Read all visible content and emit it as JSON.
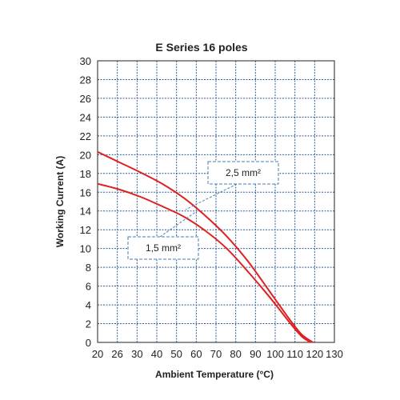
{
  "chart_data": {
    "type": "line",
    "title": "E Series 16 poles",
    "xlabel": "Ambient Temperature (°C)",
    "ylabel": "Working Current (A)",
    "xlim": [
      20,
      130
    ],
    "ylim": [
      0,
      30
    ],
    "x_ticks": [
      "20",
      "26",
      "30",
      "40",
      "50",
      "60",
      "70",
      "80",
      "90",
      "100",
      "110",
      "120",
      "130"
    ],
    "y_ticks": [
      "0",
      "2",
      "4",
      "6",
      "8",
      "10",
      "12",
      "14",
      "16",
      "18",
      "20",
      "22",
      "24",
      "26",
      "28",
      "30"
    ],
    "grid": true,
    "series": [
      {
        "name": "2,5 mm²",
        "color": "#e02020",
        "x": [
          20,
          30,
          40,
          50,
          60,
          70,
          80,
          90,
          100,
          110,
          115,
          120
        ],
        "y": [
          20.3,
          19.2,
          18.1,
          16.9,
          15.4,
          13.5,
          11.3,
          8.6,
          5.4,
          2.2,
          0.8,
          0
        ]
      },
      {
        "name": "1,5 mm²",
        "color": "#e02020",
        "x": [
          20,
          30,
          40,
          50,
          60,
          70,
          80,
          90,
          100,
          110,
          115,
          119
        ],
        "y": [
          16.9,
          16.3,
          15.5,
          14.5,
          13.4,
          11.9,
          10.0,
          7.5,
          4.8,
          1.9,
          0.6,
          0
        ]
      }
    ],
    "annotations": [
      {
        "text": "2,5 mm²"
      },
      {
        "text": "1,5 mm²"
      }
    ],
    "series_color": "#e02020",
    "annotation_border_color": "#4a7fb5",
    "grid_color": "#2f5f95"
  }
}
